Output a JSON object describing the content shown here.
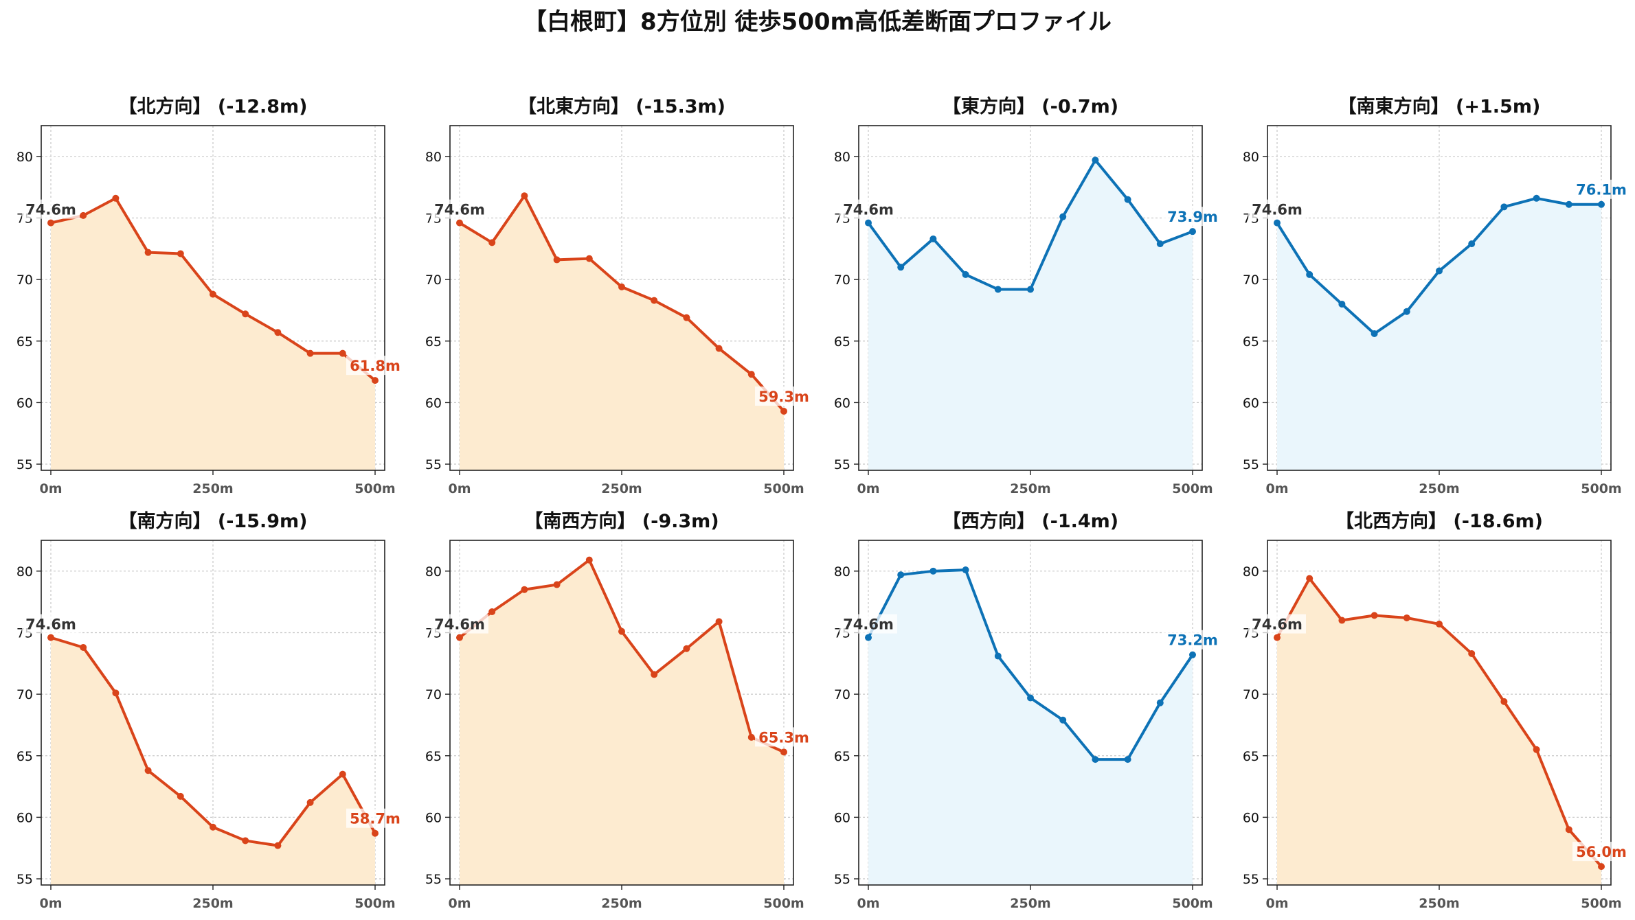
{
  "title": "【白根町】8方位別 徒歩500m高低差断面プロファイル",
  "colors": {
    "down_line": "#d9441a",
    "down_fill": "#fdebd0",
    "up_line": "#0d72b6",
    "up_fill": "#eaf6fc",
    "start_label": "#333333"
  },
  "chart_data": [
    {
      "type": "area",
      "title": "【北方向】 (-12.8m)",
      "trend": "down",
      "x": [
        0,
        50,
        100,
        150,
        200,
        250,
        300,
        350,
        400,
        450,
        500
      ],
      "y": [
        74.6,
        75.2,
        76.6,
        72.2,
        72.1,
        68.8,
        67.2,
        65.7,
        64.0,
        64.0,
        61.8
      ],
      "start_label": "74.6m",
      "end_label": "61.8m",
      "ylim": [
        54.5,
        82.5
      ],
      "yticks": [
        55,
        60,
        65,
        70,
        75,
        80
      ],
      "xticks": [
        0,
        250,
        500
      ],
      "xtick_labels": [
        "0m",
        "250m",
        "500m"
      ],
      "grid": true
    },
    {
      "type": "area",
      "title": "【北東方向】 (-15.3m)",
      "trend": "down",
      "x": [
        0,
        50,
        100,
        150,
        200,
        250,
        300,
        350,
        400,
        450,
        500
      ],
      "y": [
        74.6,
        73.0,
        76.8,
        71.6,
        71.7,
        69.4,
        68.3,
        66.9,
        64.4,
        62.3,
        59.3
      ],
      "start_label": "74.6m",
      "end_label": "59.3m",
      "ylim": [
        54.5,
        82.5
      ],
      "yticks": [
        55,
        60,
        65,
        70,
        75,
        80
      ],
      "xticks": [
        0,
        250,
        500
      ],
      "xtick_labels": [
        "0m",
        "250m",
        "500m"
      ],
      "grid": true
    },
    {
      "type": "area",
      "title": "【東方向】 (-0.7m)",
      "trend": "up",
      "x": [
        0,
        50,
        100,
        150,
        200,
        250,
        300,
        350,
        400,
        450,
        500
      ],
      "y": [
        74.6,
        71.0,
        73.3,
        70.4,
        69.2,
        69.2,
        75.1,
        79.7,
        76.5,
        72.9,
        73.9
      ],
      "start_label": "74.6m",
      "end_label": "73.9m",
      "ylim": [
        54.5,
        82.5
      ],
      "yticks": [
        55,
        60,
        65,
        70,
        75,
        80
      ],
      "xticks": [
        0,
        250,
        500
      ],
      "xtick_labels": [
        "0m",
        "250m",
        "500m"
      ],
      "grid": true
    },
    {
      "type": "area",
      "title": "【南東方向】 (+1.5m)",
      "trend": "up",
      "x": [
        0,
        50,
        100,
        150,
        200,
        250,
        300,
        350,
        400,
        450,
        500
      ],
      "y": [
        74.6,
        70.4,
        68.0,
        65.6,
        67.4,
        70.7,
        72.9,
        75.9,
        76.6,
        76.1,
        76.1
      ],
      "start_label": "74.6m",
      "end_label": "76.1m",
      "ylim": [
        54.5,
        82.5
      ],
      "yticks": [
        55,
        60,
        65,
        70,
        75,
        80
      ],
      "xticks": [
        0,
        250,
        500
      ],
      "xtick_labels": [
        "0m",
        "250m",
        "500m"
      ],
      "grid": true
    },
    {
      "type": "area",
      "title": "【南方向】 (-15.9m)",
      "trend": "down",
      "x": [
        0,
        50,
        100,
        150,
        200,
        250,
        300,
        350,
        400,
        450,
        500
      ],
      "y": [
        74.6,
        73.8,
        70.1,
        63.8,
        61.7,
        59.2,
        58.1,
        57.7,
        61.2,
        63.5,
        58.7
      ],
      "start_label": "74.6m",
      "end_label": "58.7m",
      "ylim": [
        54.5,
        82.5
      ],
      "yticks": [
        55,
        60,
        65,
        70,
        75,
        80
      ],
      "xticks": [
        0,
        250,
        500
      ],
      "xtick_labels": [
        "0m",
        "250m",
        "500m"
      ],
      "grid": true
    },
    {
      "type": "area",
      "title": "【南西方向】 (-9.3m)",
      "trend": "down",
      "x": [
        0,
        50,
        100,
        150,
        200,
        250,
        300,
        350,
        400,
        450,
        500
      ],
      "y": [
        74.6,
        76.7,
        78.5,
        78.9,
        80.9,
        75.1,
        71.6,
        73.7,
        75.9,
        66.5,
        65.3
      ],
      "start_label": "74.6m",
      "end_label": "65.3m",
      "ylim": [
        54.5,
        82.5
      ],
      "yticks": [
        55,
        60,
        65,
        70,
        75,
        80
      ],
      "xticks": [
        0,
        250,
        500
      ],
      "xtick_labels": [
        "0m",
        "250m",
        "500m"
      ],
      "grid": true
    },
    {
      "type": "area",
      "title": "【西方向】 (-1.4m)",
      "trend": "up",
      "x": [
        0,
        50,
        100,
        150,
        200,
        250,
        300,
        350,
        400,
        450,
        500
      ],
      "y": [
        74.6,
        79.7,
        80.0,
        80.1,
        73.1,
        69.7,
        67.9,
        64.7,
        64.7,
        69.3,
        73.2
      ],
      "start_label": "74.6m",
      "end_label": "73.2m",
      "ylim": [
        54.5,
        82.5
      ],
      "yticks": [
        55,
        60,
        65,
        70,
        75,
        80
      ],
      "xticks": [
        0,
        250,
        500
      ],
      "xtick_labels": [
        "0m",
        "250m",
        "500m"
      ],
      "grid": true
    },
    {
      "type": "area",
      "title": "【北西方向】 (-18.6m)",
      "trend": "down",
      "x": [
        0,
        50,
        100,
        150,
        200,
        250,
        300,
        350,
        400,
        450,
        500
      ],
      "y": [
        74.6,
        79.4,
        76.0,
        76.4,
        76.2,
        75.7,
        73.3,
        69.4,
        65.5,
        59.0,
        56.0
      ],
      "start_label": "74.6m",
      "end_label": "56.0m",
      "ylim": [
        54.5,
        82.5
      ],
      "yticks": [
        55,
        60,
        65,
        70,
        75,
        80
      ],
      "xticks": [
        0,
        250,
        500
      ],
      "xtick_labels": [
        "0m",
        "250m",
        "500m"
      ],
      "grid": true
    }
  ]
}
